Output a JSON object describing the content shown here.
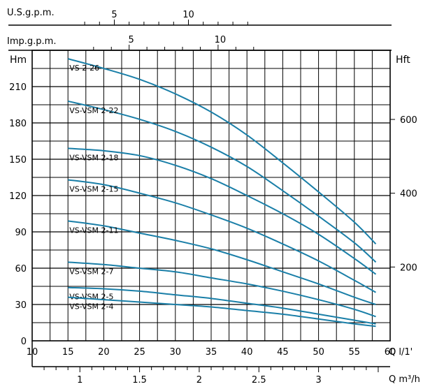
{
  "chart_data": {
    "type": "line",
    "left_axis_label": "Hm",
    "right_axis_label": "Hft",
    "top_axis_1_label": "U.S.g.p.m.",
    "top_axis_2_label": "Imp.g.p.m.",
    "bottom_axis_1_label": "Q l/1'",
    "bottom_axis_2_label": "Q m³/h",
    "x_range": [
      10,
      60
    ],
    "y_range": [
      0,
      240
    ],
    "grid": true,
    "line_color": "#1a7fa8",
    "y_ticks": [
      0,
      30,
      60,
      90,
      120,
      150,
      180,
      210
    ],
    "hft_ticks": [
      200,
      400,
      600
    ],
    "x_ticks": [
      10,
      15,
      20,
      25,
      30,
      35,
      40,
      45,
      50,
      55,
      60
    ],
    "m3h_ticks": [
      1,
      1.5,
      2,
      2.5,
      3
    ],
    "usgpm_ticks": [
      5,
      10
    ],
    "impgpm_ticks": [
      5,
      10
    ],
    "series": [
      {
        "name": "VS 2-26",
        "x": [
          15,
          20,
          25,
          30,
          35,
          40,
          45,
          50,
          55,
          58
        ],
        "y": [
          233,
          225,
          216,
          204,
          189,
          170,
          147,
          123,
          98,
          80
        ]
      },
      {
        "name": "VS-VSM 2-22",
        "x": [
          15,
          20,
          25,
          30,
          35,
          40,
          45,
          50,
          55,
          58
        ],
        "y": [
          198,
          191,
          183,
          173,
          160,
          144,
          124,
          103,
          81,
          65
        ]
      },
      {
        "name": "VS-VSM 2-18",
        "x": [
          15,
          20,
          25,
          30,
          35,
          40,
          45,
          50,
          55,
          58
        ],
        "y": [
          159,
          157,
          153,
          145,
          134,
          120,
          105,
          88,
          68,
          55
        ]
      },
      {
        "name": "VS-VSM 2-15",
        "x": [
          15,
          20,
          25,
          30,
          35,
          40,
          45,
          50,
          55,
          58
        ],
        "y": [
          133,
          129,
          122,
          114,
          104,
          93,
          80,
          66,
          50,
          40
        ]
      },
      {
        "name": "VS-VSM 2-11",
        "x": [
          15,
          20,
          25,
          30,
          35,
          40,
          45,
          50,
          55,
          58
        ],
        "y": [
          99,
          95,
          89,
          83,
          76,
          67,
          57,
          47,
          36,
          30
        ]
      },
      {
        "name": "VS-VSM 2-7",
        "x": [
          15,
          20,
          25,
          30,
          35,
          40,
          45,
          50,
          55,
          58
        ],
        "y": [
          65,
          63,
          60,
          57,
          52,
          47,
          41,
          34,
          26,
          20
        ]
      },
      {
        "name": "VS-VSM 2-5",
        "x": [
          15,
          20,
          25,
          30,
          35,
          40,
          45,
          50,
          55,
          58
        ],
        "y": [
          44,
          43,
          41,
          38,
          35,
          31,
          27,
          22,
          17,
          14
        ]
      },
      {
        "name": "VS-VSM 2-4",
        "x": [
          15,
          20,
          25,
          30,
          35,
          40,
          45,
          50,
          55,
          58
        ],
        "y": [
          36,
          34,
          32,
          30,
          28,
          25,
          22,
          18,
          14,
          12
        ]
      }
    ]
  }
}
